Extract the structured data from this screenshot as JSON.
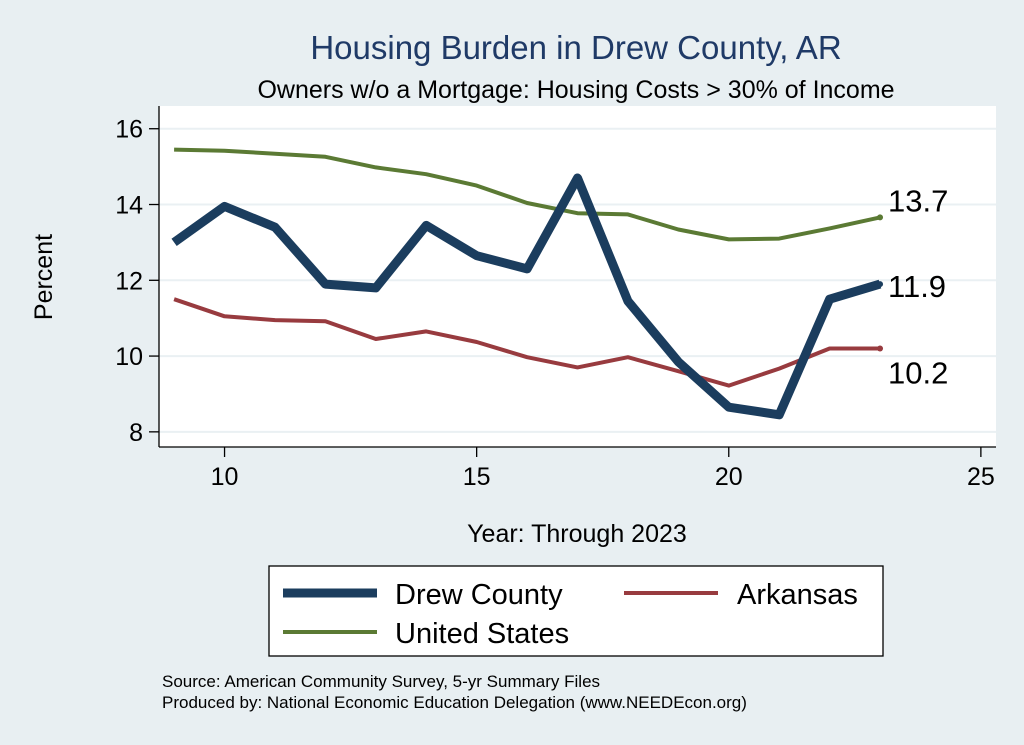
{
  "chart_data": {
    "type": "line",
    "title": "Housing Burden in Drew County, AR",
    "subtitle": "Owners w/o a Mortgage: Housing Costs > 30% of Income",
    "xlabel": "Year: Through 2023",
    "ylabel": "Percent",
    "xlim": [
      8.7,
      25.3
    ],
    "ylim": [
      7.6,
      16.6
    ],
    "xticks": [
      10,
      15,
      20,
      25
    ],
    "yticks": [
      8,
      10,
      12,
      14,
      16
    ],
    "grid": true,
    "x": [
      9,
      10,
      11,
      12,
      13,
      14,
      15,
      16,
      17,
      18,
      19,
      20,
      21,
      22,
      23
    ],
    "series": [
      {
        "name": "Drew County",
        "color": "#1b3d5e",
        "values": [
          13.0,
          13.95,
          13.4,
          11.9,
          11.8,
          13.45,
          12.65,
          12.3,
          14.7,
          11.45,
          9.85,
          8.65,
          8.45,
          11.5,
          11.9
        ],
        "end_label": "11.9"
      },
      {
        "name": "Arkansas",
        "color": "#983b3f",
        "values": [
          11.5,
          11.05,
          10.95,
          10.92,
          10.45,
          10.65,
          10.37,
          9.97,
          9.7,
          9.97,
          9.6,
          9.22,
          9.67,
          10.2,
          10.2
        ],
        "end_label": "10.2"
      },
      {
        "name": "United States",
        "color": "#5b7a34",
        "values": [
          15.45,
          15.42,
          15.34,
          15.26,
          14.98,
          14.8,
          14.5,
          14.04,
          13.77,
          13.74,
          13.34,
          13.08,
          13.1,
          13.37,
          13.66
        ],
        "end_label": "13.7"
      }
    ],
    "legend": {
      "placement": "bottom",
      "entries": [
        "Drew County",
        "Arkansas",
        "United States"
      ]
    },
    "source_lines": [
      "Source: American Community Survey, 5-yr Summary Files",
      "Produced by: National Economic Education Delegation (www.NEEDEcon.org)"
    ]
  }
}
